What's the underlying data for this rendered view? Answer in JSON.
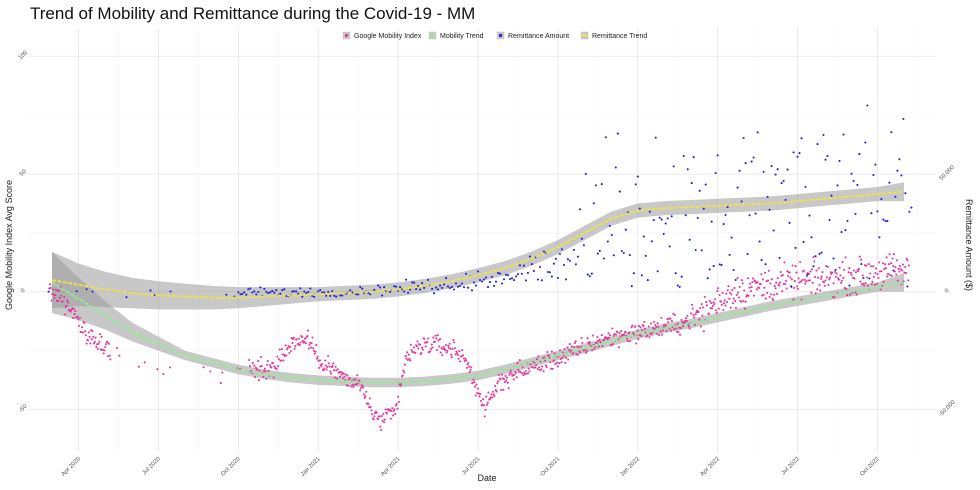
{
  "chart_data": {
    "type": "scatter",
    "title": "Trend of Mobility and Remittance during the Covid-19 - MM",
    "xlabel": "Date",
    "ylabel": "Google Mobility Index Avg Score",
    "ylabel_right": "Remittance Amount ($)",
    "x_ticks": [
      "Apr 2020",
      "Jul 2020",
      "Oct 2020",
      "Jan 2021",
      "Apr 2021",
      "Jul 2021",
      "Oct 2021",
      "Jan 2022",
      "Apr 2022",
      "Jul 2022",
      "Oct 2022"
    ],
    "x_ticks_month_index": [
      3,
      6,
      9,
      12,
      15,
      18,
      21,
      24,
      27,
      30,
      33
    ],
    "xlim_month_index": [
      1.1,
      35.2
    ],
    "y_ticks": [
      -50,
      0,
      50,
      100
    ],
    "ylim": [
      -68,
      112
    ],
    "y2_ticks": [
      "-50,000",
      "0",
      "50,000"
    ],
    "y2_tick_values": [
      -50000,
      0,
      50000
    ],
    "y2lim": [
      -68000,
      112000
    ],
    "grid": true,
    "legend": "top-center",
    "legend_entries": [
      {
        "label": "Google Mobility Index",
        "color": "#e3379c",
        "kind": "point"
      },
      {
        "label": "Mobility Trend",
        "color": "#90ee90",
        "kind": "line"
      },
      {
        "label": "Remittance Amount",
        "color": "#1f1fd6",
        "kind": "point"
      },
      {
        "label": "Remittance Trend",
        "color": "#f0e442",
        "kind": "line"
      }
    ],
    "series": [
      {
        "name": "Mobility Trend",
        "axis": "left",
        "x": [
          2.0,
          3.0,
          4.0,
          5.0,
          6.0,
          7.0,
          8.0,
          9.0,
          10.0,
          11.0,
          12.0,
          13.0,
          14.0,
          15.0,
          16.0,
          17.0,
          18.0,
          19.0,
          20.0,
          21.0,
          22.0,
          23.0,
          24.0,
          25.0,
          26.0,
          27.0,
          28.0,
          29.0,
          30.0,
          31.0,
          32.0,
          33.0,
          34.0
        ],
        "y": [
          4,
          -3,
          -10,
          -17,
          -22,
          -27,
          -30,
          -33,
          -35,
          -36.5,
          -37.5,
          -38,
          -38.5,
          -38.5,
          -38,
          -37,
          -35.5,
          -33,
          -30,
          -27,
          -24,
          -21,
          -18,
          -15.5,
          -13.5,
          -11,
          -8.5,
          -6,
          -4,
          -2,
          0,
          2,
          4
        ],
        "band": [
          13,
          9,
          6,
          4,
          3,
          2,
          2,
          2,
          2,
          2,
          2,
          2,
          2,
          2,
          2,
          2,
          2,
          2,
          2,
          2,
          2,
          2,
          2,
          2,
          2,
          2,
          2,
          2,
          2,
          2,
          2,
          2,
          4
        ]
      },
      {
        "name": "Remittance Trend",
        "axis": "right",
        "x": [
          2.0,
          3.0,
          4.0,
          5.0,
          6.0,
          7.0,
          8.0,
          9.0,
          10.0,
          11.0,
          12.0,
          13.0,
          14.0,
          15.0,
          16.0,
          17.0,
          18.0,
          19.0,
          20.0,
          21.0,
          22.0,
          23.0,
          24.0,
          25.0,
          26.0,
          27.0,
          28.0,
          29.0,
          30.0,
          31.0,
          32.0,
          33.0,
          34.0
        ],
        "y": [
          5000,
          3000,
          1000,
          -500,
          -1500,
          -2000,
          -2500,
          -2500,
          -2000,
          -1500,
          -1000,
          -500,
          0,
          1000,
          2500,
          4500,
          7000,
          10000,
          14000,
          19000,
          25000,
          31000,
          34500,
          35500,
          36000,
          36500,
          37000,
          37500,
          38500,
          39500,
          40500,
          41500,
          42500
        ],
        "band": [
          12000,
          9000,
          7500,
          6500,
          6000,
          5500,
          5000,
          4500,
          4000,
          3500,
          3000,
          3000,
          3000,
          3000,
          3000,
          3000,
          3000,
          3000,
          3000,
          3000,
          3000,
          3000,
          3000,
          3000,
          3000,
          3000,
          3000,
          3000,
          3000,
          3000,
          3000,
          3000,
          4000
        ]
      }
    ]
  }
}
